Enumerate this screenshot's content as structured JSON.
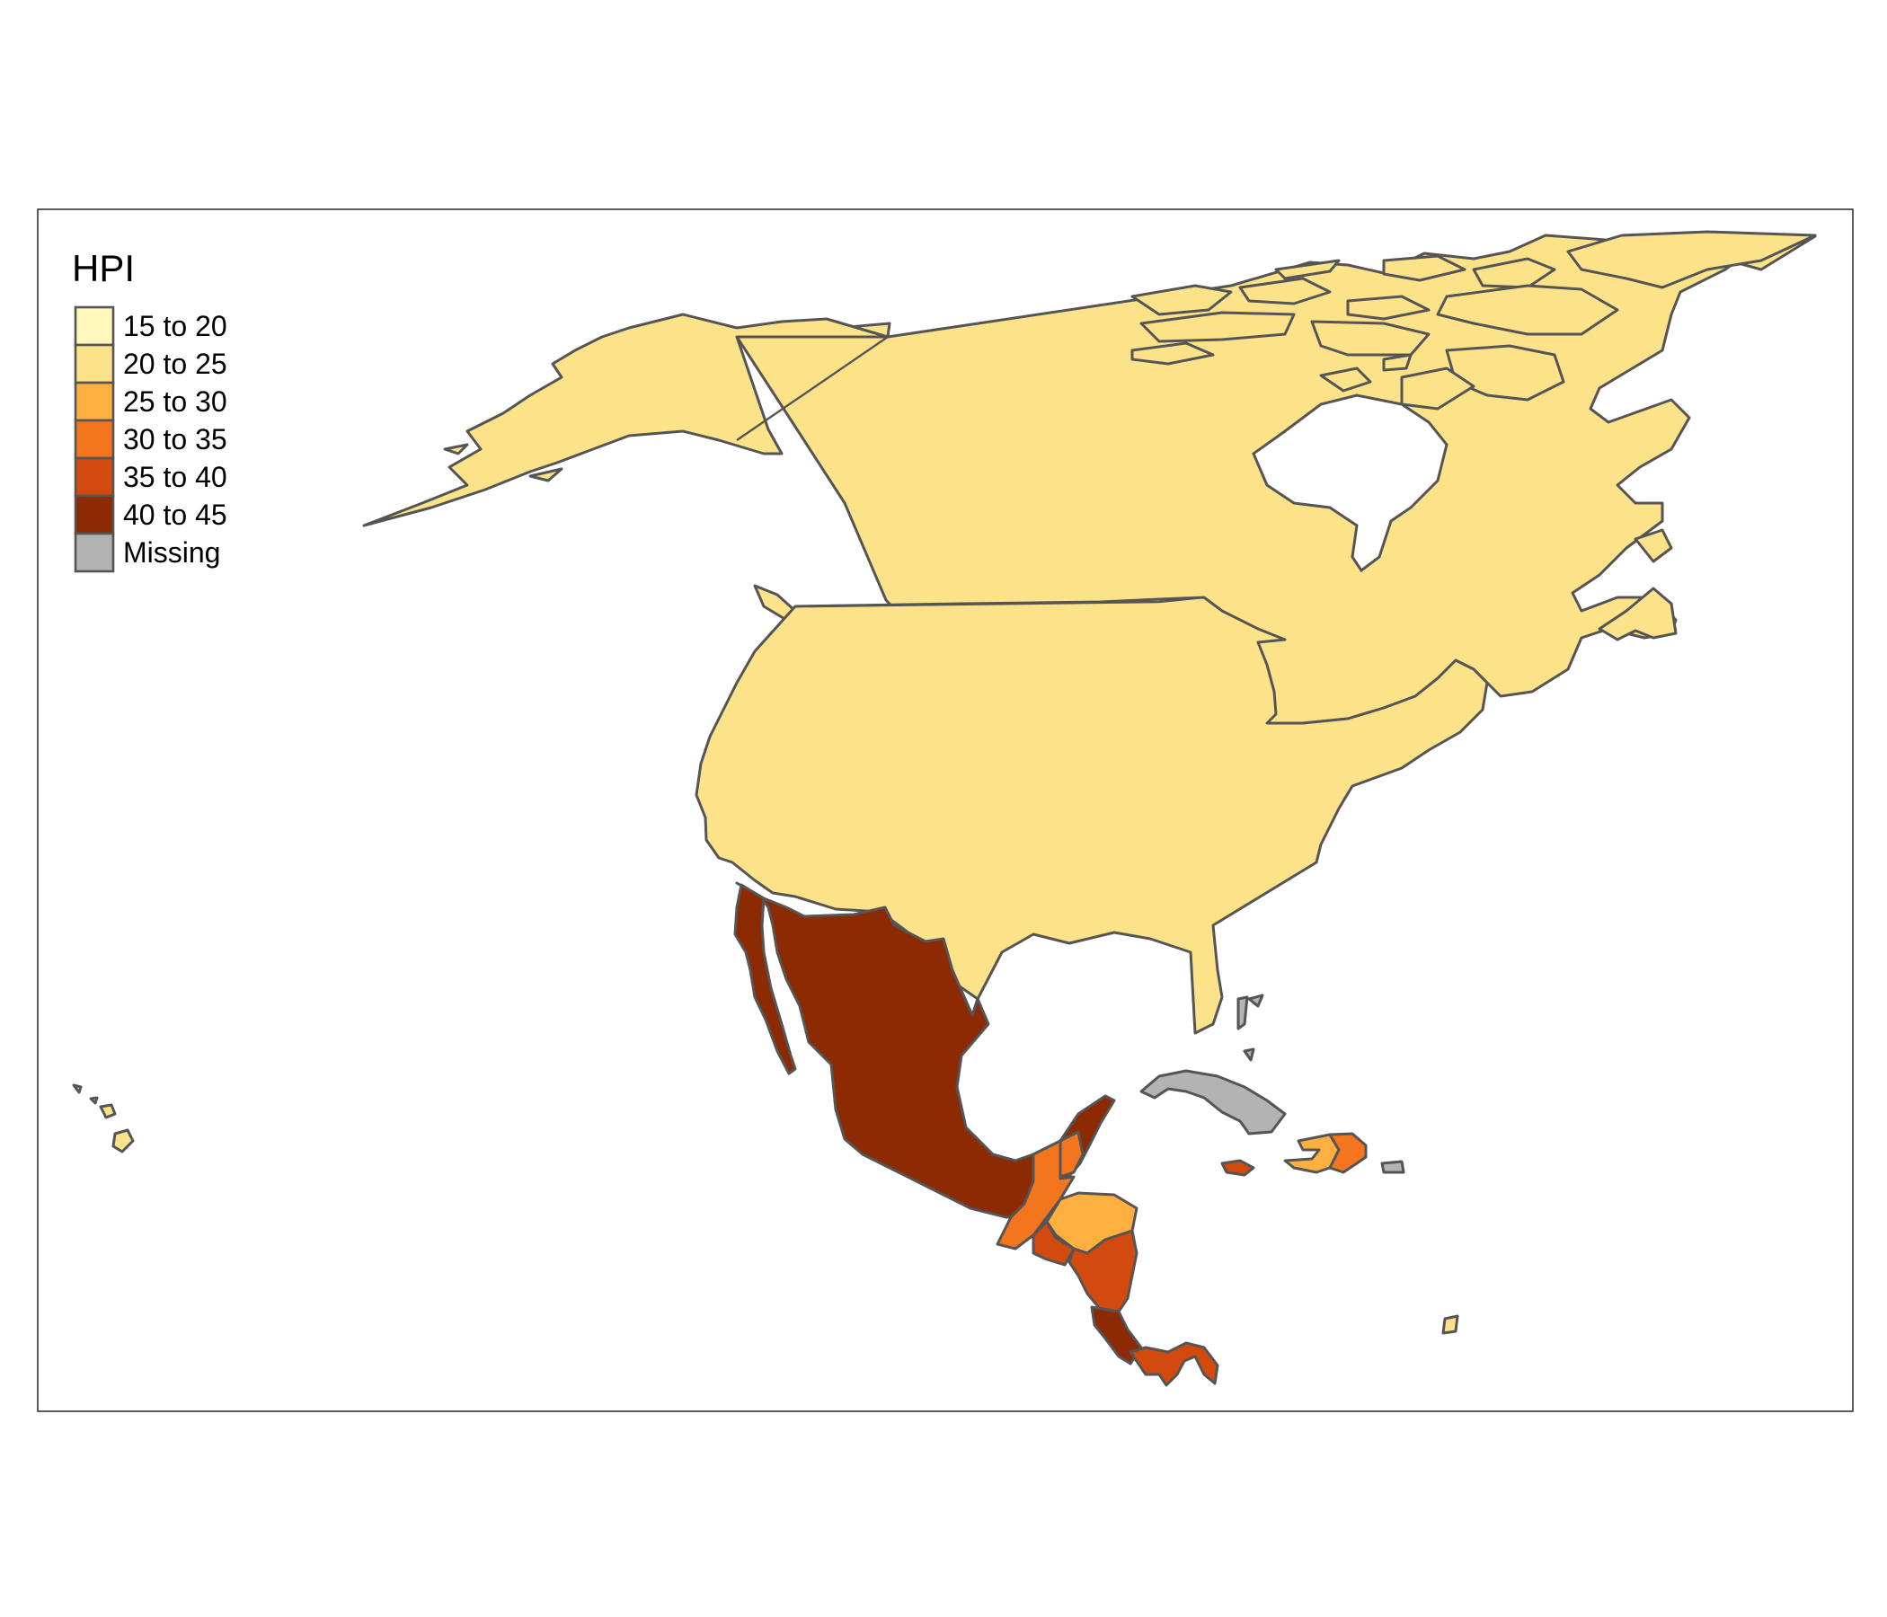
{
  "map": {
    "legend": {
      "title": "HPI",
      "items": [
        {
          "label": "15 to 20",
          "color": "#FFF7BC"
        },
        {
          "label": "20 to 25",
          "color": "#FCE38A"
        },
        {
          "label": "25 to 30",
          "color": "#FDB03F"
        },
        {
          "label": "30 to 35",
          "color": "#F3761E"
        },
        {
          "label": "35 to 40",
          "color": "#D24A0E"
        },
        {
          "label": "40 to 45",
          "color": "#8C2A04"
        },
        {
          "label": "Missing",
          "color": "#B3B3B3"
        }
      ]
    },
    "regions": [
      {
        "name": "Canada",
        "class": "20 to 25"
      },
      {
        "name": "United States",
        "class": "20 to 25"
      },
      {
        "name": "Mexico",
        "class": "40 to 45"
      },
      {
        "name": "Guatemala",
        "class": "30 to 35"
      },
      {
        "name": "Belize",
        "class": "30 to 35"
      },
      {
        "name": "Honduras",
        "class": "25 to 30"
      },
      {
        "name": "El Salvador",
        "class": "35 to 40"
      },
      {
        "name": "Nicaragua",
        "class": "35 to 40"
      },
      {
        "name": "Costa Rica",
        "class": "40 to 45"
      },
      {
        "name": "Panama",
        "class": "35 to 40"
      },
      {
        "name": "Cuba",
        "class": "Missing"
      },
      {
        "name": "Jamaica",
        "class": "35 to 40"
      },
      {
        "name": "Haiti",
        "class": "25 to 30"
      },
      {
        "name": "Dominican Republic",
        "class": "30 to 35"
      },
      {
        "name": "Puerto Rico",
        "class": "Missing"
      },
      {
        "name": "Bahamas",
        "class": "Missing"
      },
      {
        "name": "Trinidad and Tobago",
        "class": "20 to 25"
      }
    ]
  }
}
